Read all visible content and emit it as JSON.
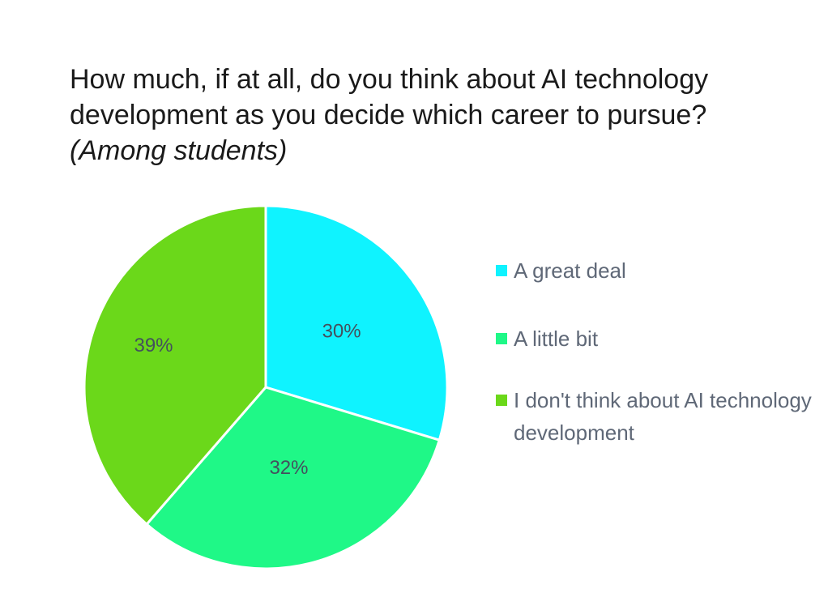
{
  "title": {
    "line1": "How much, if at all, do you think about AI technology",
    "line2": "development as you decide which career to pursue?",
    "subtitle": "(Among students)"
  },
  "chart_data": {
    "type": "pie",
    "title": "How much, if at all, do you think about AI technology development as you decide which career to pursue?",
    "subtitle": "(Among students)",
    "categories": [
      "A great deal",
      "A little bit",
      "I don't think about AI technology development"
    ],
    "values": [
      30,
      32,
      39
    ],
    "data_labels": [
      "30%",
      "32%",
      "39%"
    ],
    "colors": [
      "#0ff3ff",
      "#1ff887",
      "#6bd81a"
    ],
    "legend_position": "right",
    "start_angle": "12 o'clock",
    "direction": "clockwise"
  },
  "legend": {
    "items": [
      {
        "label": "A great deal"
      },
      {
        "label": "A little bit"
      },
      {
        "label": "I don't think about AI technology development"
      }
    ]
  }
}
